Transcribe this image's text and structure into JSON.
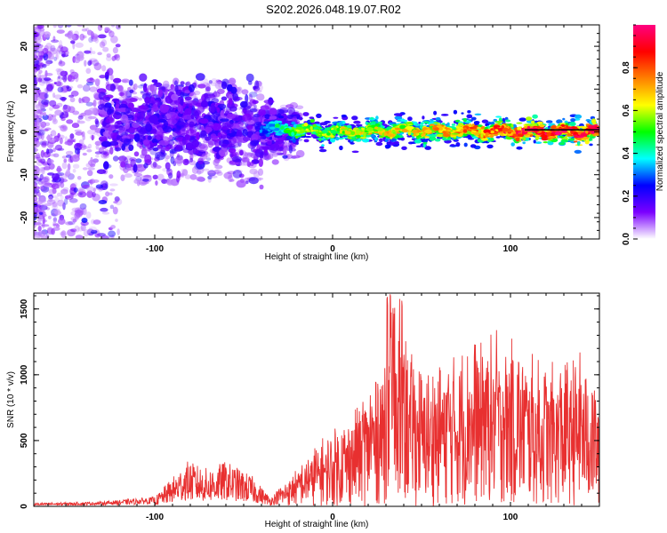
{
  "title": "S202.2026.048.19.07.R02",
  "chart_data": [
    {
      "type": "heatmap",
      "xlabel": "Height of straight line (km)",
      "ylabel": "Frequency (Hz)",
      "xlim": [
        -168,
        150
      ],
      "ylim": [
        -25,
        25
      ],
      "x_ticks": [
        -100,
        0,
        100
      ],
      "y_ticks": [
        -20,
        -10,
        0,
        10,
        20
      ],
      "grid": false,
      "colorbar": {
        "label": "Normalized spectral amplitude",
        "range": [
          0,
          1
        ],
        "ticks": [
          0.0,
          0.2,
          0.4,
          0.6,
          0.8
        ],
        "tick_labels": [
          "0.0",
          "0.2",
          "0.4",
          "0.6",
          "0.8"
        ],
        "colormap": [
          "#ffffff",
          "#7b00ff",
          "#0000ff",
          "#00ffff",
          "#00ff00",
          "#ffff00",
          "#ff8000",
          "#ff0000",
          "#ff0080"
        ]
      },
      "ridge": [
        {
          "x": -120,
          "freq": 2.0,
          "amp": 0.18
        },
        {
          "x": -80,
          "freq": 1.5,
          "amp": 0.2
        },
        {
          "x": -40,
          "freq": 0.8,
          "amp": 0.3
        },
        {
          "x": -20,
          "freq": 0.5,
          "amp": 0.55
        },
        {
          "x": 0,
          "freq": 0.0,
          "amp": 0.6
        },
        {
          "x": 40,
          "freq": 0.3,
          "amp": 0.65
        },
        {
          "x": 80,
          "freq": 0.2,
          "amp": 0.75
        },
        {
          "x": 110,
          "freq": 0.1,
          "amp": 0.9
        },
        {
          "x": 150,
          "freq": 0.0,
          "amp": 0.95
        }
      ]
    },
    {
      "type": "line",
      "xlabel": "Height of straight line (km)",
      "ylabel": "SNR (10 * v/v)",
      "xlim": [
        -168,
        150
      ],
      "ylim": [
        0,
        1620
      ],
      "x_ticks": [
        -100,
        0,
        100
      ],
      "y_ticks": [
        0,
        500,
        1000,
        1500
      ],
      "color": "#e83030",
      "grid": false,
      "envelope": [
        {
          "x": -168,
          "y": 20
        },
        {
          "x": -130,
          "y": 30
        },
        {
          "x": -100,
          "y": 60
        },
        {
          "x": -82,
          "y": 300
        },
        {
          "x": -70,
          "y": 250
        },
        {
          "x": -60,
          "y": 300
        },
        {
          "x": -45,
          "y": 200
        },
        {
          "x": -35,
          "y": 60
        },
        {
          "x": -20,
          "y": 250
        },
        {
          "x": -10,
          "y": 400
        },
        {
          "x": 0,
          "y": 500
        },
        {
          "x": 10,
          "y": 600
        },
        {
          "x": 20,
          "y": 800
        },
        {
          "x": 35,
          "y": 1200
        },
        {
          "x": 50,
          "y": 900
        },
        {
          "x": 70,
          "y": 1000
        },
        {
          "x": 85,
          "y": 1150
        },
        {
          "x": 100,
          "y": 1100
        },
        {
          "x": 120,
          "y": 900
        },
        {
          "x": 140,
          "y": 1000
        },
        {
          "x": 150,
          "y": 750
        }
      ]
    }
  ]
}
